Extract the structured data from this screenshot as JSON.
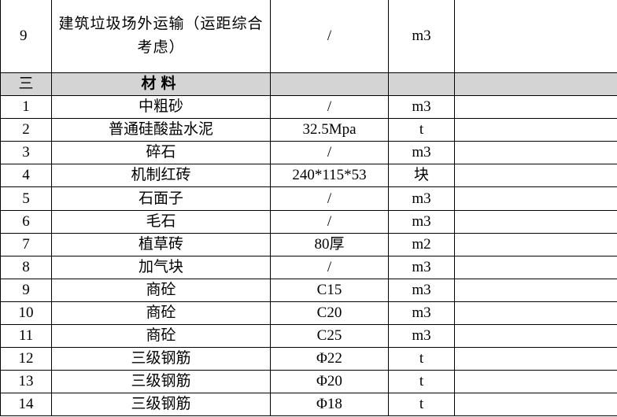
{
  "table": {
    "rows": [
      {
        "no": "9",
        "name": "建筑垃圾场外运输（运距综合考虑）",
        "spec": "/",
        "unit": "m3"
      },
      {
        "no": "三",
        "name": "材料"
      },
      {
        "no": "1",
        "name": "中粗砂",
        "spec": "/",
        "unit": "m3"
      },
      {
        "no": "2",
        "name": "普通硅酸盐水泥",
        "spec": "32.5Mpa",
        "unit": "t"
      },
      {
        "no": "3",
        "name": "碎石",
        "spec": "/",
        "unit": "m3"
      },
      {
        "no": "4",
        "name": "机制红砖",
        "spec": "240*115*53",
        "unit": "块"
      },
      {
        "no": "5",
        "name": "石面子",
        "spec": "/",
        "unit": "m3"
      },
      {
        "no": "6",
        "name": "毛石",
        "spec": "/",
        "unit": "m3"
      },
      {
        "no": "7",
        "name": "植草砖",
        "spec": "80厚",
        "unit": "m2"
      },
      {
        "no": "8",
        "name": "加气块",
        "spec": "/",
        "unit": "m3"
      },
      {
        "no": "9",
        "name": "商砼",
        "spec": "C15",
        "unit": "m3"
      },
      {
        "no": "10",
        "name": "商砼",
        "spec": "C20",
        "unit": "m3"
      },
      {
        "no": "11",
        "name": "商砼",
        "spec": "C25",
        "unit": "m3"
      },
      {
        "no": "12",
        "name": "三级钢筋",
        "spec": "Φ22",
        "unit": "t"
      },
      {
        "no": "13",
        "name": "三级钢筋",
        "spec": "Φ20",
        "unit": "t"
      },
      {
        "no": "14",
        "name": "三级钢筋",
        "spec": "Φ18",
        "unit": "t"
      }
    ]
  }
}
